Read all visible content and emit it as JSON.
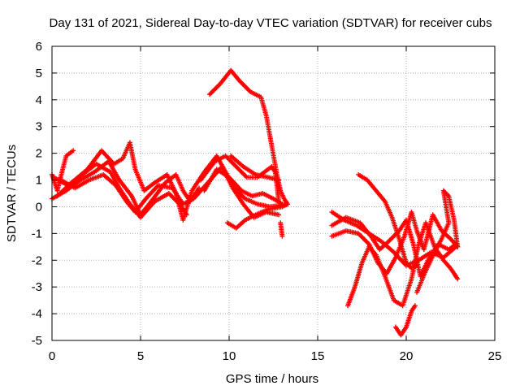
{
  "chart_data": {
    "type": "scatter",
    "title": "Day 131 of 2021, Sidereal Day-to-day VTEC variation (SDTVAR) for receiver cubs",
    "xlabel": "GPS time / hours",
    "ylabel": "SDTVAR / TECUs",
    "xlim": [
      0,
      25
    ],
    "ylim": [
      -5,
      6
    ],
    "xticks": [
      "0",
      "5",
      "10",
      "15",
      "20",
      "25"
    ],
    "yticks": [
      "-5",
      "-4",
      "-3",
      "-2",
      "-1",
      "0",
      "1",
      "2",
      "3",
      "4",
      "5",
      "6"
    ],
    "grid": true,
    "marker": "+",
    "color": "#ff0000",
    "series": [
      {
        "points": [
          [
            0.0,
            1.2
          ],
          [
            0.3,
            0.6
          ],
          [
            0.6,
            1.4
          ],
          [
            0.8,
            1.9
          ],
          [
            1.2,
            2.1
          ]
        ]
      },
      {
        "points": [
          [
            0.0,
            0.3
          ],
          [
            0.8,
            0.6
          ],
          [
            1.6,
            1.0
          ],
          [
            2.4,
            1.3
          ],
          [
            3.2,
            1.7
          ],
          [
            3.8,
            1.0
          ],
          [
            4.5,
            0.4
          ],
          [
            5.0,
            -0.3
          ],
          [
            5.6,
            0.2
          ],
          [
            6.4,
            0.9
          ],
          [
            7.0,
            1.2
          ],
          [
            7.4,
            0.6
          ],
          [
            7.8,
            0.2
          ],
          [
            8.3,
            0.7
          ]
        ]
      },
      {
        "points": [
          [
            0.1,
            1.1
          ],
          [
            0.9,
            0.8
          ],
          [
            1.7,
            1.2
          ],
          [
            2.5,
            1.6
          ],
          [
            3.3,
            1.3
          ],
          [
            3.8,
            0.7
          ],
          [
            4.4,
            0.1
          ],
          [
            5.0,
            -0.4
          ],
          [
            5.8,
            0.2
          ],
          [
            6.6,
            0.5
          ],
          [
            7.2,
            0.1
          ],
          [
            7.6,
            -0.3
          ]
        ]
      },
      {
        "points": [
          [
            0.3,
            0.4
          ],
          [
            1.1,
            0.9
          ],
          [
            2.0,
            1.4
          ],
          [
            2.8,
            2.1
          ],
          [
            3.5,
            1.6
          ],
          [
            4.0,
            1.8
          ],
          [
            4.4,
            2.4
          ],
          [
            4.7,
            1.4
          ],
          [
            5.2,
            0.6
          ],
          [
            5.8,
            0.9
          ],
          [
            6.5,
            1.2
          ],
          [
            7.0,
            0.5
          ],
          [
            7.4,
            -0.5
          ],
          [
            7.9,
            0.6
          ],
          [
            8.6,
            1.3
          ],
          [
            9.3,
            1.9
          ],
          [
            9.8,
            1.3
          ],
          [
            10.3,
            0.7
          ],
          [
            10.9,
            0.3
          ],
          [
            11.6,
            0.1
          ],
          [
            12.3,
            0.0
          ],
          [
            13.3,
            0.1
          ]
        ]
      },
      {
        "points": [
          [
            0.5,
            1.0
          ],
          [
            1.3,
            0.7
          ],
          [
            2.1,
            1.0
          ],
          [
            2.9,
            1.2
          ],
          [
            3.6,
            0.8
          ],
          [
            4.2,
            0.2
          ],
          [
            4.7,
            -0.2
          ],
          [
            5.3,
            0.3
          ],
          [
            6.0,
            0.8
          ],
          [
            6.8,
            0.7
          ],
          [
            7.4,
            0.1
          ],
          [
            8.0,
            0.3
          ],
          [
            8.8,
            0.9
          ],
          [
            9.6,
            1.5
          ],
          [
            10.2,
            0.7
          ],
          [
            10.8,
            0.1
          ],
          [
            11.4,
            -0.4
          ],
          [
            12.1,
            -0.2
          ],
          [
            12.8,
            -0.3
          ]
        ]
      },
      {
        "points": [
          [
            8.9,
            4.2
          ],
          [
            9.5,
            4.6
          ],
          [
            10.1,
            5.1
          ],
          [
            10.6,
            4.7
          ],
          [
            11.2,
            4.3
          ],
          [
            11.8,
            4.1
          ],
          [
            12.1,
            3.4
          ],
          [
            12.4,
            2.3
          ],
          [
            12.7,
            1.2
          ],
          [
            12.9,
            0.6
          ],
          [
            13.1,
            0.3
          ],
          [
            13.3,
            0.1
          ]
        ]
      },
      {
        "points": [
          [
            8.4,
            1.0
          ],
          [
            9.2,
            1.7
          ],
          [
            9.8,
            1.9
          ],
          [
            10.4,
            1.5
          ],
          [
            11.0,
            1.1
          ],
          [
            11.6,
            1.1
          ],
          [
            12.0,
            1.3
          ],
          [
            12.4,
            1.5
          ],
          [
            12.6,
            1.3
          ],
          [
            12.7,
            0.8
          ],
          [
            12.8,
            0.2
          ]
        ]
      },
      {
        "points": [
          [
            8.6,
            0.6
          ],
          [
            9.3,
            1.4
          ],
          [
            10.0,
            1.1
          ],
          [
            10.7,
            0.6
          ],
          [
            11.3,
            0.4
          ],
          [
            11.9,
            0.5
          ],
          [
            12.5,
            0.3
          ],
          [
            13.0,
            0.1
          ]
        ]
      },
      {
        "points": [
          [
            10.1,
            1.9
          ],
          [
            10.8,
            1.5
          ],
          [
            11.5,
            1.2
          ],
          [
            12.2,
            1.1
          ],
          [
            12.8,
            1.0
          ]
        ]
      },
      {
        "points": [
          [
            9.9,
            -0.6
          ],
          [
            10.4,
            -0.8
          ],
          [
            10.9,
            -0.5
          ],
          [
            11.5,
            -0.3
          ],
          [
            12.2,
            -0.1
          ],
          [
            13.0,
            0.0
          ],
          [
            13.3,
            0.1
          ]
        ]
      },
      {
        "points": [
          [
            12.9,
            -0.6
          ],
          [
            13.0,
            -1.1
          ]
        ]
      },
      {
        "points": [
          [
            15.8,
            -0.2
          ],
          [
            16.5,
            -0.5
          ],
          [
            17.2,
            -0.7
          ],
          [
            17.9,
            -1.0
          ],
          [
            18.6,
            -1.3
          ],
          [
            19.3,
            -1.7
          ],
          [
            20.0,
            -2.2
          ],
          [
            20.7,
            -2.0
          ],
          [
            21.4,
            -1.7
          ],
          [
            22.1,
            -1.9
          ],
          [
            22.8,
            -1.5
          ]
        ]
      },
      {
        "points": [
          [
            15.8,
            -0.7
          ],
          [
            16.6,
            -0.4
          ],
          [
            17.4,
            -0.6
          ],
          [
            18.0,
            -1.1
          ],
          [
            18.5,
            -1.6
          ],
          [
            19.0,
            -1.3
          ],
          [
            19.6,
            -0.9
          ],
          [
            20.0,
            -0.5
          ],
          [
            20.4,
            -1.4
          ],
          [
            20.8,
            -2.6
          ],
          [
            21.3,
            -1.9
          ],
          [
            21.8,
            -1.4
          ],
          [
            22.4,
            -1.6
          ],
          [
            22.8,
            -1.4
          ]
        ]
      },
      {
        "points": [
          [
            15.8,
            -1.1
          ],
          [
            16.6,
            -0.9
          ],
          [
            17.3,
            -1.0
          ],
          [
            17.9,
            -1.4
          ],
          [
            18.4,
            -2.1
          ],
          [
            18.9,
            -2.5
          ],
          [
            19.4,
            -1.9
          ],
          [
            19.9,
            -1.1
          ],
          [
            20.3,
            -0.2
          ],
          [
            20.6,
            -0.9
          ],
          [
            21.0,
            -1.6
          ],
          [
            21.5,
            -0.3
          ],
          [
            22.0,
            -0.9
          ],
          [
            22.5,
            -1.2
          ],
          [
            22.9,
            -1.5
          ]
        ]
      },
      {
        "points": [
          [
            16.7,
            -3.7
          ],
          [
            17.1,
            -3.0
          ],
          [
            17.5,
            -2.1
          ],
          [
            17.9,
            -1.5
          ],
          [
            18.3,
            -1.8
          ],
          [
            18.8,
            -2.6
          ],
          [
            19.3,
            -3.5
          ],
          [
            19.8,
            -3.7
          ],
          [
            20.3,
            -2.7
          ],
          [
            20.7,
            -1.4
          ],
          [
            21.1,
            -0.6
          ],
          [
            21.6,
            -1.5
          ],
          [
            22.1,
            -2.0
          ],
          [
            22.5,
            -2.3
          ],
          [
            22.9,
            -2.7
          ]
        ]
      },
      {
        "points": [
          [
            17.3,
            1.2
          ],
          [
            17.8,
            1.0
          ],
          [
            18.3,
            0.6
          ],
          [
            18.8,
            0.2
          ],
          [
            19.2,
            -0.4
          ],
          [
            19.6,
            -1.2
          ],
          [
            20.0,
            -2.1
          ],
          [
            20.3,
            -2.3
          ],
          [
            20.6,
            -2.2
          ]
        ]
      },
      {
        "points": [
          [
            19.4,
            -4.5
          ],
          [
            19.7,
            -4.8
          ],
          [
            20.0,
            -4.5
          ],
          [
            20.3,
            -3.9
          ],
          [
            20.5,
            -3.7
          ]
        ]
      },
      {
        "points": [
          [
            20.6,
            -3.2
          ],
          [
            21.1,
            -2.4
          ],
          [
            21.6,
            -1.7
          ],
          [
            22.0,
            -1.2
          ],
          [
            22.4,
            -0.6
          ],
          [
            22.1,
            0.6
          ],
          [
            22.4,
            0.4
          ],
          [
            22.7,
            -0.5
          ],
          [
            22.9,
            -1.5
          ]
        ]
      }
    ]
  }
}
